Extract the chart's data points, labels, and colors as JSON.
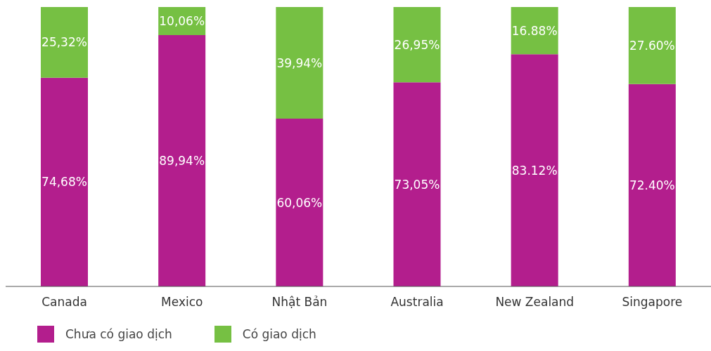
{
  "chart_data": {
    "type": "bar",
    "stacked": true,
    "categories": [
      "Canada",
      "Mexico",
      "Nhật Bản",
      "Australia",
      "New Zealand",
      "Singapore"
    ],
    "series": [
      {
        "name": "Chưa có giao dịch",
        "color": "#b31e8d",
        "values": [
          74.68,
          89.94,
          60.06,
          73.05,
          83.12,
          72.4
        ],
        "value_labels": [
          "74,68%",
          "89,94%",
          "60,06%",
          "73,05%",
          "83.12%",
          "72.40%"
        ]
      },
      {
        "name": "Có giao dịch",
        "color": "#76c043",
        "values": [
          25.32,
          10.06,
          39.94,
          26.95,
          16.88,
          27.6
        ],
        "value_labels": [
          "25,32%",
          "10,06%",
          "39,94%",
          "26,95%",
          "16.88%",
          "27.60%"
        ]
      }
    ],
    "legend": "bottom left",
    "grid": false
  }
}
